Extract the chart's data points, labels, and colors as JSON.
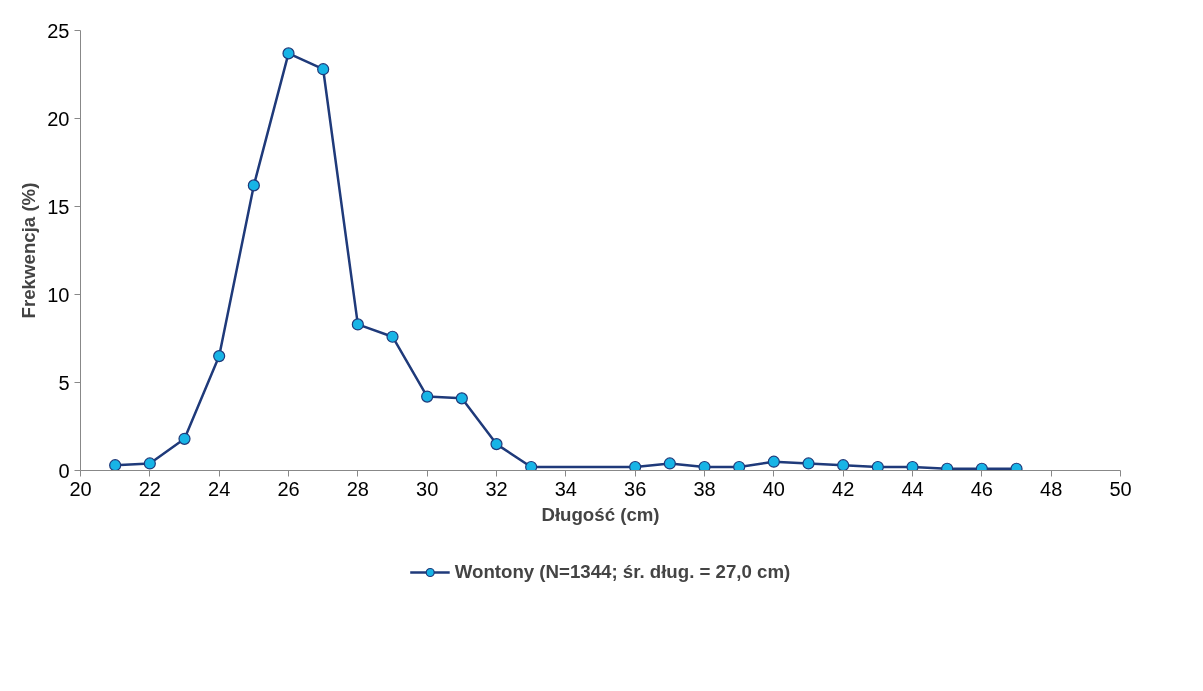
{
  "chart_data": {
    "type": "line",
    "xlabel": "Długość (cm)",
    "ylabel": "Frekwencja (%)",
    "x": [
      21,
      22,
      23,
      24,
      25,
      26,
      27,
      28,
      29,
      30,
      31,
      32,
      33,
      36,
      37,
      38,
      39,
      40,
      41,
      42,
      43,
      44,
      45,
      46,
      47
    ],
    "series": [
      {
        "name": "Wontony (N=1344; śr. dług. = 27,0 cm)",
        "color": "#1f3a7a",
        "colors": [
          "#17b4e6",
          "#17b4e6",
          "#17b4e6",
          "#17b4e6",
          "#17b4e6",
          "#17b4e6",
          "#17b4e6",
          "#17b4e6",
          "#17b4e6",
          "#17b4e6",
          "#17b4e6",
          "#17b4e6",
          "#17b4e6",
          "#17b4e6",
          "#17b4e6",
          "#17b4e6",
          "#17b4e6",
          "#17b4e6",
          "#17b4e6",
          "#17b4e6",
          "#17b4e6",
          "#17b4e6",
          "#17b4e6",
          "#17b4e6",
          "#17b4e6"
        ],
        "values": [
          0.3,
          0.4,
          1.8,
          6.5,
          16.2,
          23.7,
          22.8,
          8.3,
          7.6,
          4.2,
          4.1,
          1.5,
          0.2,
          0.2,
          0.4,
          0.2,
          0.2,
          0.5,
          0.4,
          0.3,
          0.2,
          0.2,
          0.1,
          0.1,
          0.1
        ]
      }
    ],
    "xlim": [
      20,
      50
    ],
    "xticks": [
      20,
      22,
      24,
      26,
      28,
      30,
      32,
      34,
      36,
      38,
      40,
      42,
      44,
      46,
      48,
      50
    ],
    "ylim": [
      0,
      25
    ],
    "yticks": [
      0,
      5,
      10,
      15,
      20,
      25
    ],
    "grid": false,
    "legend": "bottom",
    "marker": "circle",
    "line_style": "solid"
  }
}
